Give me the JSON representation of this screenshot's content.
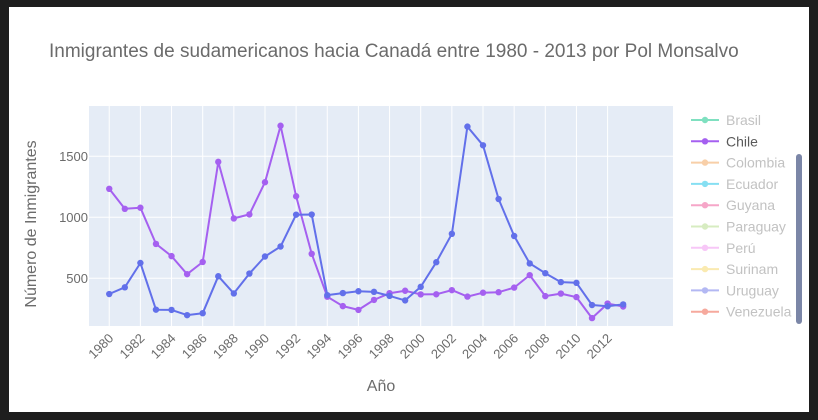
{
  "chart_data": {
    "type": "line",
    "title": "Inmigrantes de sudamericanos hacia  Canadá entre 1980 - 2013 por Pol Monsalvo",
    "xlabel": "Año",
    "ylabel": "Número de Inmigrantes",
    "x_tick_labels": [
      "1980",
      "1982",
      "1984",
      "1986",
      "1988",
      "1990",
      "1992",
      "1994",
      "1996",
      "1998",
      "2000",
      "2002",
      "2004",
      "2006",
      "2008",
      "2010",
      "2012"
    ],
    "y_tick_labels": [
      "500",
      "1000",
      "1500"
    ],
    "xlim": [
      1978.7,
      2016.2
    ],
    "ylim": [
      108,
      1912
    ],
    "grid": true,
    "legend_position": "right",
    "series": [
      {
        "name": "Brasil",
        "color": "#7fe0c0",
        "visible": false,
        "values": []
      },
      {
        "name": "Chile",
        "color": "#a560f0",
        "visible": true,
        "x": [
          1980,
          1981,
          1982,
          1983,
          1984,
          1985,
          1986,
          1987,
          1988,
          1989,
          1990,
          1991,
          1992,
          1993,
          1994,
          1995,
          1996,
          1997,
          1998,
          1999,
          2000,
          2001,
          2002,
          2003,
          2004,
          2005,
          2006,
          2007,
          2008,
          2009,
          2010,
          2011,
          2012,
          2013
        ],
        "values": [
          1233,
          1069,
          1078,
          781,
          681,
          533,
          633,
          1454,
          990,
          1023,
          1287,
          1750,
          1172,
          700,
          348,
          271,
          240,
          322,
          377,
          397,
          367,
          368,
          402,
          349,
          381,
          385,
          423,
          525,
          353,
          374,
          345,
          173,
          292,
          268
        ]
      },
      {
        "name": "Colombia",
        "color": "#f8cfa8",
        "visible": false,
        "values": []
      },
      {
        "name": "Ecuador",
        "color": "#86dff2",
        "visible": false,
        "values": []
      },
      {
        "name": "Guyana",
        "color": "#f6a6c8",
        "visible": false,
        "values": []
      },
      {
        "name": "Paraguay",
        "color": "#d7ecc1",
        "visible": false,
        "values": []
      },
      {
        "name": "Perú",
        "color": "#f7c7f7",
        "visible": false,
        "values": []
      },
      {
        "name": "Surinam",
        "color": "#faeab0",
        "visible": false,
        "values": []
      },
      {
        "name": "Uruguay",
        "color": "#6270ea",
        "visible": true,
        "legend_color": "#b3b8f3",
        "x": [
          1980,
          1981,
          1982,
          1983,
          1984,
          1985,
          1986,
          1987,
          1988,
          1989,
          1990,
          1991,
          1992,
          1993,
          1994,
          1995,
          1996,
          1997,
          1998,
          1999,
          2000,
          2001,
          2002,
          2003,
          2004,
          2005,
          2006,
          2007,
          2008,
          2009,
          2010,
          2011,
          2012,
          2013
        ],
        "values": [
          370,
          425,
          625,
          242,
          240,
          197,
          213,
          516,
          375,
          538,
          678,
          760,
          1021,
          1022,
          361,
          378,
          393,
          388,
          355,
          318,
          429,
          631,
          864,
          1743,
          1590,
          1149,
          846,
          621,
          541,
          468,
          462,
          280,
          270,
          285
        ]
      },
      {
        "name": "Venezuela",
        "color": "#f6a99d",
        "visible": false,
        "values": []
      }
    ]
  }
}
